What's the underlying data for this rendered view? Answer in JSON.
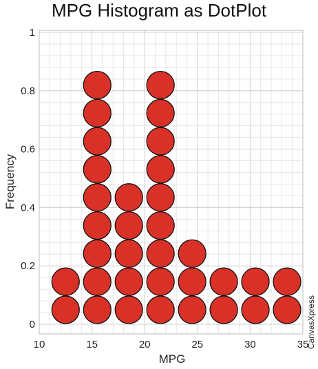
{
  "chart_data": {
    "type": "dotplot",
    "title": "MPG Histogram as DotPlot",
    "xlabel": "MPG",
    "ylabel": "Frequency",
    "xlim": [
      10,
      35
    ],
    "ylim": [
      0,
      1
    ],
    "x_ticks": [
      "10",
      "15",
      "20",
      "25",
      "30",
      "35"
    ],
    "y_ticks": [
      "0",
      "0.2",
      "0.4",
      "0.6",
      "0.8",
      "1"
    ],
    "grid": true,
    "bins": [
      {
        "x": 12.5,
        "count": 2
      },
      {
        "x": 15.5,
        "count": 9
      },
      {
        "x": 18.5,
        "count": 5
      },
      {
        "x": 21.5,
        "count": 9
      },
      {
        "x": 24.5,
        "count": 3
      },
      {
        "x": 27.5,
        "count": 2
      },
      {
        "x": 30.5,
        "count": 2
      },
      {
        "x": 33.5,
        "count": 2
      }
    ],
    "dot_color": "#d93128",
    "dot_stroke": "#111111"
  },
  "watermark": "CanvasXpress"
}
